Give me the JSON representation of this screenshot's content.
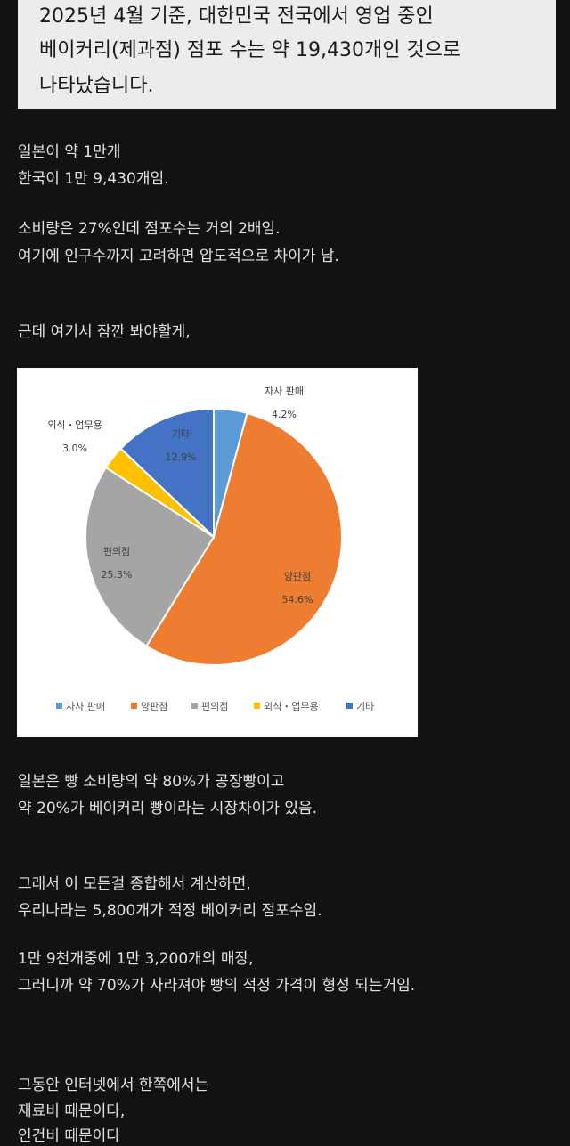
{
  "quote": {
    "lines": [
      "2025년 4월 기준, 대한민국 전국에서 영업 중인",
      "베이커리(제과점) 점포 수는 약 19,430개인 것으로",
      "나타났습니다."
    ]
  },
  "paragraph1": [
    "일본이 약 1만개",
    "한국이 1만 9,430개임."
  ],
  "paragraph2": [
    "소비량은 27%인데 점포수는 거의 2배임.",
    "여기에 인구수까지 고려하면 압도적으로 차이가 남."
  ],
  "paragraph3": [
    "근데 여기서 잠깐 봐야할게,"
  ],
  "chart_data": {
    "type": "pie",
    "slices": [
      {
        "label": "자사 판매",
        "value": 4.2,
        "value_label": "4.2%",
        "color": "#5B9BD5"
      },
      {
        "label": "양판점",
        "value": 54.6,
        "value_label": "54.6%",
        "color": "#ED7D31"
      },
      {
        "label": "편의점",
        "value": 25.3,
        "value_label": "25.3%",
        "color": "#A5A5A5"
      },
      {
        "label": "외식・업무용",
        "value": 3.0,
        "value_label": "3.0%",
        "color": "#FFC000"
      },
      {
        "label": "기타",
        "value": 12.9,
        "value_label": "12.9%",
        "color": "#4472C4"
      }
    ],
    "legend": {
      "placement": "bottom"
    }
  },
  "paragraph4": [
    "일본은 빵 소비량의 약 80%가 공장빵이고",
    "약 20%가 베이커리 빵이라는 시장차이가 있음."
  ],
  "paragraph5": [
    "그래서 이 모든걸 종합해서 계산하면,",
    "우리나라는 5,800개가 적정 베이커리 점포수임."
  ],
  "paragraph6": [
    "1만 9천개중에 1만 3,200개의 매장,",
    "그러니까 약 70%가 사라져야 빵의 적정 가격이 형성 되는거임."
  ],
  "paragraph7": [
    "그동안 인터넷에서 한쪽에서는",
    "재료비 때문이다,",
    "인건비 때문이다"
  ]
}
